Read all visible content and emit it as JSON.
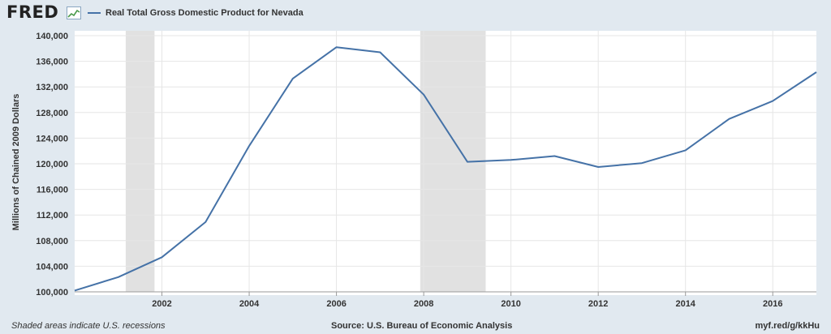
{
  "header": {
    "logo_text": "FRED",
    "logo_icon": "line-chart-icon"
  },
  "chart_data": {
    "type": "line",
    "title": "",
    "xlabel": "",
    "ylabel": "Millions of Chained 2009 Dollars",
    "xlim": [
      2000,
      2017
    ],
    "ylim": [
      100000,
      140000
    ],
    "x_ticks": [
      2002,
      2004,
      2006,
      2008,
      2010,
      2012,
      2014,
      2016
    ],
    "y_ticks": [
      100000,
      104000,
      108000,
      112000,
      116000,
      120000,
      124000,
      128000,
      132000,
      136000,
      140000
    ],
    "y_tick_labels": [
      "100,000",
      "104,000",
      "108,000",
      "112,000",
      "116,000",
      "120,000",
      "124,000",
      "128,000",
      "132,000",
      "136,000",
      "140,000"
    ],
    "grid": true,
    "legend_position": "top-left",
    "series": [
      {
        "name": "Real Total Gross Domestic Product for Nevada",
        "color": "#4572a7",
        "x": [
          2000,
          2001,
          2002,
          2003,
          2004,
          2005,
          2006,
          2007,
          2008,
          2009,
          2010,
          2011,
          2012,
          2013,
          2014,
          2015,
          2016,
          2017
        ],
        "values": [
          100200,
          102300,
          105400,
          110900,
          122800,
          133300,
          138200,
          137400,
          130800,
          120300,
          120600,
          121200,
          119500,
          120100,
          122100,
          127000,
          129800,
          134300
        ]
      }
    ],
    "recessions": [
      {
        "start": 2001.17,
        "end": 2001.83
      },
      {
        "start": 2007.92,
        "end": 2009.42
      }
    ]
  },
  "footer": {
    "note": "Shaded areas indicate U.S. recessions",
    "source": "Source: U.S. Bureau of Economic Analysis",
    "link": "myf.red/g/kkHu"
  }
}
